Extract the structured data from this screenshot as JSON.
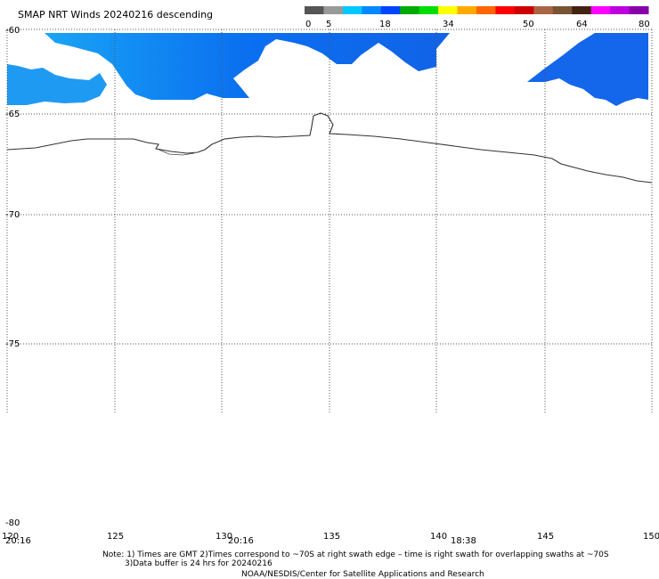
{
  "title": "SMAP NRT Winds  20240216 descending",
  "colorbar": {
    "labels": [
      "0",
      "5",
      "18",
      "34",
      "50",
      "64",
      "80"
    ],
    "colors": [
      "#555555",
      "#999999",
      "#00c8ff",
      "#0088ff",
      "#0044ff",
      "#00aa00",
      "#00dd00",
      "#ffff00",
      "#ffaa00",
      "#ff6600",
      "#ff0000",
      "#cc0000",
      "#aa6644",
      "#775533",
      "#442211",
      "#ff00ff",
      "#bb00dd",
      "#8800aa"
    ]
  },
  "map": {
    "lon_range": [
      120,
      150
    ],
    "lat_range": [
      -60,
      -80
    ],
    "lon_ticks": [
      "120",
      "125",
      "130",
      "135",
      "140",
      "145",
      "150"
    ],
    "lat_ticks": [
      "-60",
      "-65",
      "-70",
      "-75",
      "-80"
    ],
    "time_labels": [
      "20:16",
      "20:16",
      "18:38"
    ],
    "swath_color": "#0a6cf0",
    "coast_color": "#333333"
  },
  "notes": {
    "line1": "Note: 1) Times are GMT 2)Times correspond to ~70S at right swath edge – time is right swath for overlapping swaths at ~70S",
    "line2": "3)Data buffer is 24 hrs for 20240216",
    "credit": "NOAA/NESDIS/Center for Satellite Applications and Research"
  }
}
